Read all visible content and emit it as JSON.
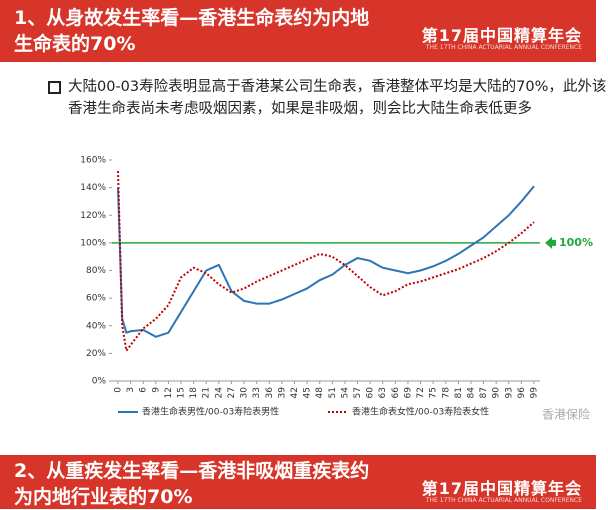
{
  "header": {
    "line1": "1、从身故发生率看—香港生命表约为内地",
    "line2": "生命表的70%",
    "logo": "第17届中国精算年会",
    "logo_sub": "THE 17TH CHINA ACTUARIAL ANNUAL CONFERENCE"
  },
  "bullet": "大陆00-03寿险表明显高于香港某公司生命表，香港整体平均是大陆的70%，此外该香港生命表尚未考虑吸烟因素，如果是非吸烟，则会比大陆生命表低更多",
  "chart_data": {
    "type": "line",
    "x": [
      0,
      1,
      2,
      3,
      6,
      9,
      12,
      15,
      18,
      21,
      24,
      27,
      30,
      33,
      36,
      39,
      42,
      45,
      48,
      51,
      54,
      57,
      60,
      63,
      66,
      69,
      72,
      75,
      78,
      81,
      84,
      87,
      90,
      93,
      96,
      99
    ],
    "series": [
      {
        "name": "香港生命表男性/00-03寿险表男性",
        "color": "#2e75b6",
        "style": "solid",
        "values": [
          140,
          45,
          35,
          36,
          37,
          32,
          35,
          50,
          65,
          80,
          84,
          65,
          58,
          56,
          56,
          59,
          63,
          67,
          73,
          77,
          84,
          89,
          87,
          82,
          80,
          78,
          80,
          83,
          87,
          92,
          98,
          104,
          112,
          120,
          130,
          141
        ]
      },
      {
        "name": "香港生命表女性/00-03寿险表女性",
        "color": "#c00000",
        "style": "dotted",
        "values": [
          152,
          40,
          22,
          26,
          38,
          45,
          55,
          75,
          82,
          78,
          70,
          64,
          67,
          72,
          76,
          80,
          84,
          88,
          92,
          90,
          84,
          76,
          68,
          62,
          65,
          70,
          72,
          75,
          78,
          81,
          85,
          89,
          94,
          100,
          107,
          115
        ]
      }
    ],
    "xlim": [
      0,
      99
    ],
    "xticks": [
      0,
      3,
      6,
      9,
      12,
      15,
      18,
      21,
      24,
      27,
      30,
      33,
      36,
      39,
      42,
      45,
      48,
      51,
      54,
      57,
      60,
      63,
      66,
      69,
      72,
      75,
      78,
      81,
      84,
      87,
      90,
      93,
      96,
      99
    ],
    "ylim": [
      0,
      160
    ],
    "yticks": [
      {
        "value": 0,
        "label": "0%"
      },
      {
        "value": 20,
        "label": "20%"
      },
      {
        "value": 40,
        "label": "40%"
      },
      {
        "value": 60,
        "label": "60%"
      },
      {
        "value": 80,
        "label": "80%"
      },
      {
        "value": 100,
        "label": "100%"
      },
      {
        "value": 120,
        "label": "120%"
      },
      {
        "value": 140,
        "label": "140%"
      },
      {
        "value": 160,
        "label": "160%"
      }
    ],
    "reference_line": {
      "value": 100,
      "label": "100%",
      "color": "#22a83a"
    }
  },
  "watermark": "香港保险",
  "next_header": {
    "line1": "2、从重疾发生率看—香港非吸烟重疾表约",
    "line2": "为内地行业表的70%",
    "logo": "第17届中国精算年会",
    "logo_sub": "THE 17TH CHINA ACTUARIAL ANNUAL CONFERENCE"
  }
}
